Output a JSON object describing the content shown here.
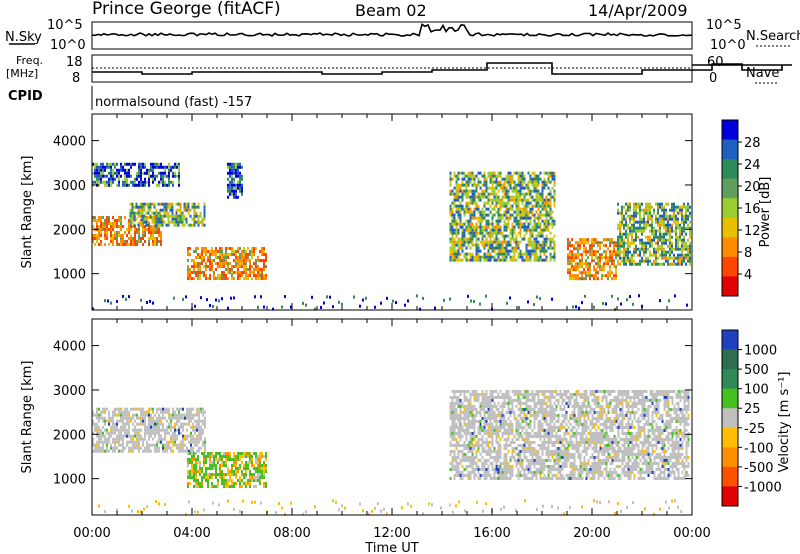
{
  "header": {
    "site": "Prince George (fitACF)",
    "beam": "Beam 02",
    "date": "14/Apr/2009"
  },
  "small_panels": {
    "nsky_label": "N.Sky",
    "nsky_ticks": [
      "10^5",
      "10^0"
    ],
    "nsky_right_ticks": [
      "10^5",
      "10^0"
    ],
    "nsearch_label": "N.Search",
    "freq_label_line1": "Freq.",
    "freq_label_line2": "[MHz]",
    "freq_ticks": [
      "18",
      "8"
    ],
    "nave_ticks": [
      "60",
      "0"
    ],
    "nave_label": "Nave",
    "cpid_label": "CPID",
    "cpid_text": "normalsound (fast) -157"
  },
  "chart_data": [
    {
      "type": "heatmap",
      "panel": "power",
      "ylabel": "Slant Range [km]",
      "ylim": [
        180,
        4600
      ],
      "yticks": [
        "4000",
        "3000",
        "2000",
        "1000"
      ],
      "colorbar_label": "Power [dB]",
      "colorbar_ticks": [
        "28",
        "24",
        "20",
        "16",
        "12",
        "8",
        "4"
      ],
      "colorscale": [
        "#0000dd",
        "#1f5fbf",
        "#2e8b57",
        "#5fa05f",
        "#9acd32",
        "#e8c000",
        "#ff8c00",
        "#ff4500",
        "#e00000"
      ],
      "echo_regions": [
        {
          "x": [
            0.0,
            2.8
          ],
          "range": [
            1650,
            2300
          ],
          "level": "high"
        },
        {
          "x": [
            1.5,
            4.5
          ],
          "range": [
            2100,
            2600
          ],
          "level": "medium"
        },
        {
          "x": [
            0.0,
            3.5
          ],
          "range": [
            3000,
            3500
          ],
          "level": "low"
        },
        {
          "x": [
            3.8,
            7.0
          ],
          "range": [
            900,
            1600
          ],
          "level": "high"
        },
        {
          "x": [
            5.4,
            6.0
          ],
          "range": [
            2700,
            3500
          ],
          "level": "low"
        },
        {
          "x": [
            14.3,
            18.5
          ],
          "range": [
            1300,
            3300
          ],
          "level": "medium"
        },
        {
          "x": [
            19.0,
            21.0
          ],
          "range": [
            900,
            1800
          ],
          "level": "high"
        },
        {
          "x": [
            21.0,
            23.9
          ],
          "range": [
            1200,
            2600
          ],
          "level": "medium"
        }
      ]
    },
    {
      "type": "heatmap",
      "panel": "velocity",
      "xlabel": "Time UT",
      "ylabel": "Slant Range [km]",
      "ylim": [
        180,
        4600
      ],
      "xlim": [
        0,
        24
      ],
      "xticks": [
        "00:00",
        "04:00",
        "08:00",
        "12:00",
        "16:00",
        "20:00",
        "00:00"
      ],
      "yticks": [
        "4000",
        "3000",
        "2000",
        "1000"
      ],
      "colorbar_label": "Velocity [m s⁻¹]",
      "colorbar_ticks": [
        "1000",
        "500",
        "100",
        "25",
        "-25",
        "-100",
        "-500",
        "-1000"
      ],
      "colorscale": [
        "#2040c0",
        "#2e6e4e",
        "#2e8b57",
        "#44c020",
        "#c0c0c0",
        "#ffbf00",
        "#ff9000",
        "#ff5000",
        "#e00000"
      ],
      "echo_regions": [
        {
          "x": [
            0.0,
            4.5
          ],
          "range": [
            1600,
            2600
          ],
          "color": "ground-scatter-grey"
        },
        {
          "x": [
            3.8,
            7.0
          ],
          "range": [
            800,
            1600
          ],
          "color": "green-yellow"
        },
        {
          "x": [
            14.3,
            23.9
          ],
          "range": [
            1000,
            3000
          ],
          "color": "ground-scatter-grey"
        }
      ]
    }
  ]
}
